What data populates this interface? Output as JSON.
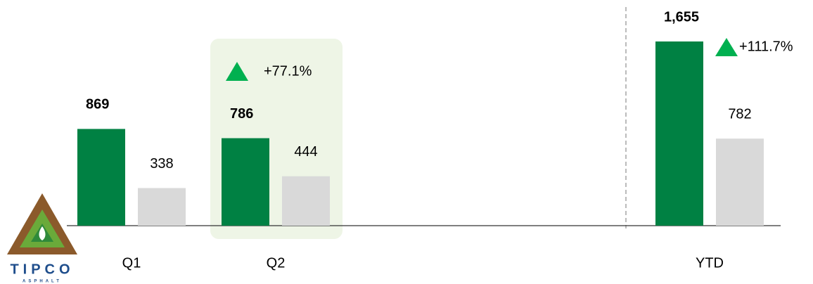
{
  "chart_data": {
    "type": "bar",
    "categories": [
      "Q1",
      "Q2",
      "YTD"
    ],
    "series": [
      {
        "color": "#008143",
        "values": [
          869,
          786,
          1655
        ],
        "value_labels": [
          "869",
          "786",
          "1,655"
        ]
      },
      {
        "color": "#d9d9d9",
        "values": [
          338,
          444,
          782
        ]
      }
    ],
    "annotations": [
      "+77.1%",
      "+111.7%"
    ]
  },
  "logo": {
    "name": "TIPCO",
    "sub": "ASPHALT"
  }
}
